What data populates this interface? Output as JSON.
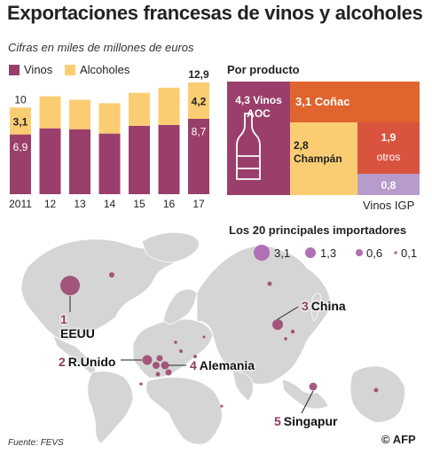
{
  "title": "Exportaciones francesas de vinos y alcoholes",
  "subtitle": "Cifras en miles de millones de euros",
  "colors": {
    "vinos": "#9a3f6b",
    "alcoholes": "#fbcd73",
    "conac": "#e0642d",
    "otros": "#d9533f",
    "igp": "#b79ccb",
    "land": "#d5d5d5",
    "bubble": "#b070b5"
  },
  "legend": {
    "vinos": "Vinos",
    "alcoholes": "Alcoholes"
  },
  "chart_data": [
    {
      "type": "bar",
      "stacked": true,
      "categories": [
        "2011",
        "12",
        "13",
        "14",
        "15",
        "16",
        "17"
      ],
      "series": [
        {
          "name": "Vinos",
          "values": [
            6.9,
            7.6,
            7.5,
            7.0,
            7.9,
            8.0,
            8.7
          ]
        },
        {
          "name": "Alcoholes",
          "values": [
            3.1,
            3.7,
            3.4,
            3.5,
            3.8,
            4.3,
            4.2
          ]
        }
      ],
      "total_labels": {
        "first": "10",
        "last": "12,9"
      },
      "value_labels": {
        "first_vinos": "6,9",
        "first_alcoholes": "3,1",
        "last_vinos": "8,7",
        "last_alcoholes": "4,2"
      },
      "ylim": [
        0,
        13
      ]
    },
    {
      "type": "treemap",
      "title": "Por producto",
      "items": [
        {
          "value": "4,3",
          "label": "Vinos AOC"
        },
        {
          "value": "3,1",
          "label": "Coñac"
        },
        {
          "value": "2,8",
          "label": "Champán"
        },
        {
          "value": "1,9",
          "label": "otros"
        },
        {
          "value": "0,8",
          "label": ""
        }
      ],
      "igp_label": "Vinos IGP"
    }
  ],
  "map": {
    "title": "Los 20 principales importadores",
    "size_legend": [
      "3,1",
      "1,3",
      "0,6",
      "0,1"
    ],
    "countries": [
      {
        "rank": "1",
        "name": "EEUU"
      },
      {
        "rank": "2",
        "name": "R.Unido"
      },
      {
        "rank": "3",
        "name": "China"
      },
      {
        "rank": "4",
        "name": "Alemania"
      },
      {
        "rank": "5",
        "name": "Singapur"
      }
    ]
  },
  "source": "Fuente: FEVS",
  "credit": "© AFP"
}
